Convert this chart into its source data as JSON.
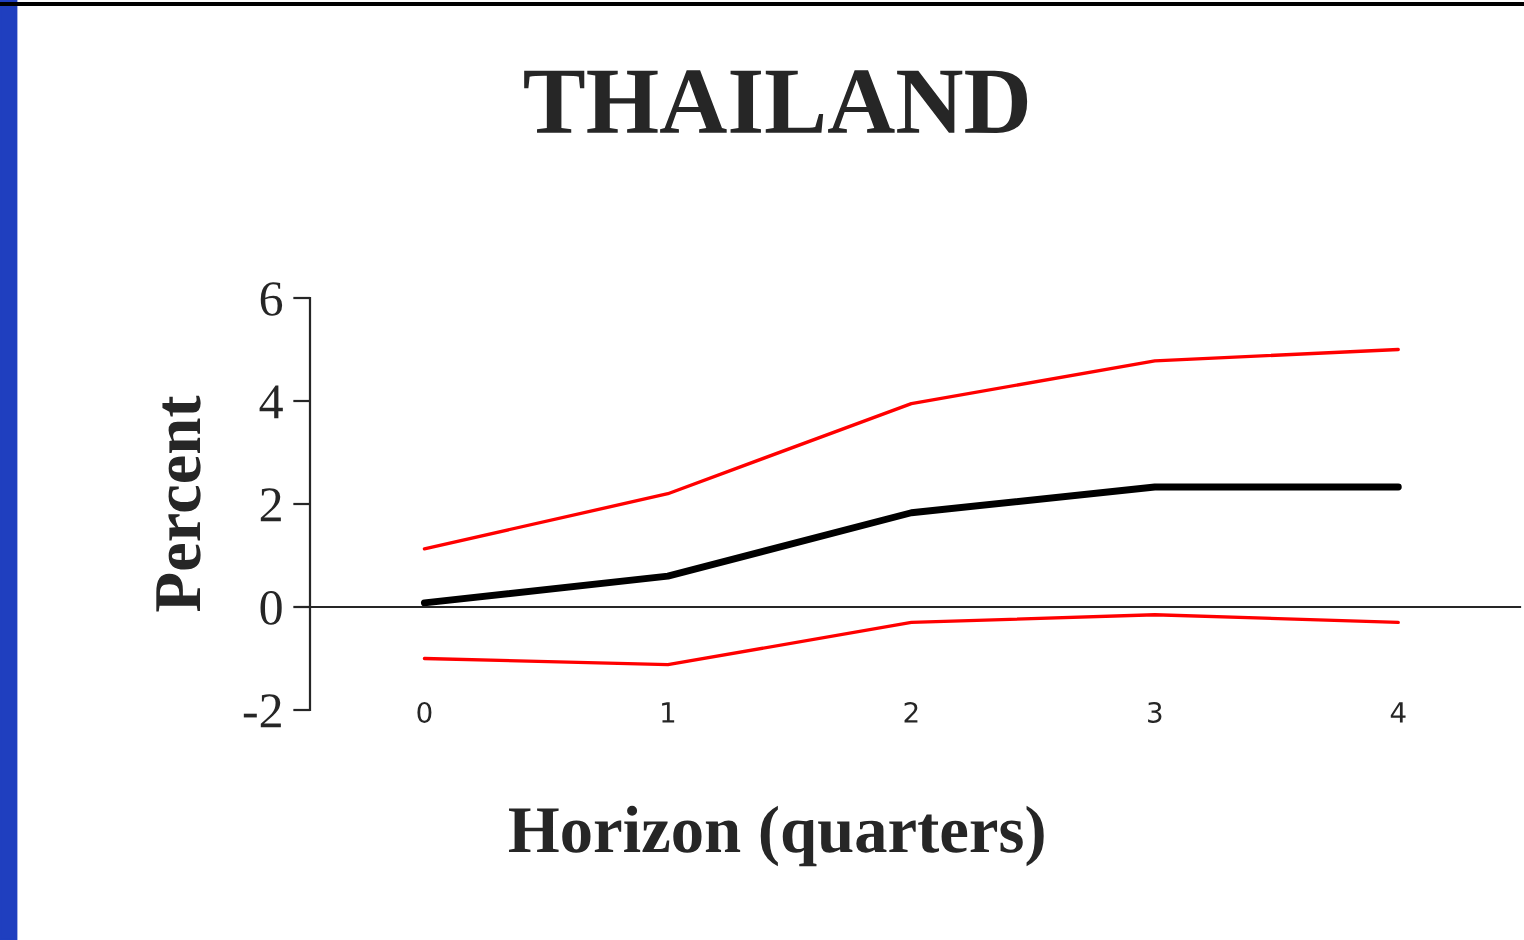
{
  "chart_data": {
    "type": "line",
    "title": "THAILAND",
    "xlabel": "Horizon (quarters)",
    "ylabel": "Percent",
    "x": [
      0,
      1,
      2,
      3,
      4
    ],
    "series": [
      {
        "color": "#ff0000",
        "values": [
          1.13,
          2.2,
          3.95,
          4.78,
          5.0
        ]
      },
      {
        "color": "#000000",
        "values": [
          0.08,
          0.6,
          1.83,
          2.33,
          2.33
        ]
      },
      {
        "color": "#ff0000",
        "values": [
          -1.0,
          -1.12,
          -0.3,
          -0.15,
          -0.3
        ]
      }
    ],
    "xlim": [
      -0.47,
      4.5
    ],
    "xticks": [
      0,
      1,
      2,
      3,
      4
    ],
    "ylim": [
      -2,
      6
    ],
    "yticks": [
      -2,
      0,
      2,
      4,
      6
    ],
    "legend": false
  }
}
